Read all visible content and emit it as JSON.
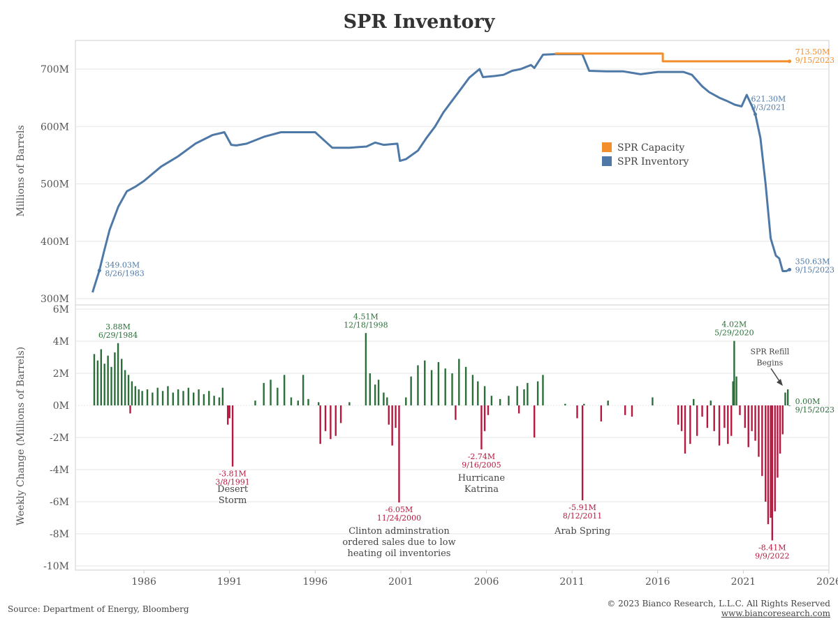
{
  "title": "SPR Inventory",
  "colors": {
    "inventory": "#4e79a7",
    "capacity": "#f28e2b",
    "positive": "#2c6e3a",
    "negative": "#b5193f",
    "grid": "#e6e6e6",
    "axis": "#cccccc"
  },
  "footer": {
    "source": "Source: Department of Energy, Bloomberg",
    "copyright": "© 2023 Bianco Research, L.L.C. All Rights Reserved",
    "url": "www.biancoresearch.com"
  },
  "chart_data": [
    {
      "type": "line",
      "ylabel": "Millions of Barrels",
      "ylim": [
        290,
        750
      ],
      "yticks": [
        300,
        400,
        500,
        600,
        700
      ],
      "ytick_labels": [
        "300M",
        "400M",
        "500M",
        "600M",
        "700M"
      ],
      "xlim": [
        1982.0,
        2026.0
      ],
      "xticks": [
        1986,
        1991,
        1996,
        2001,
        2006,
        2011,
        2016,
        2021,
        2026
      ],
      "grid": true,
      "legend": {
        "position": "right",
        "entries": [
          {
            "label": "SPR Capacity",
            "color": "#f28e2b"
          },
          {
            "label": "SPR Inventory",
            "color": "#4e79a7"
          }
        ]
      },
      "series": [
        {
          "name": "SPR Inventory",
          "x": [
            1983.0,
            1983.4,
            1983.65,
            1984.0,
            1984.5,
            1985.0,
            1985.5,
            1986.0,
            1987.0,
            1988.0,
            1989.0,
            1990.0,
            1990.7,
            1991.1,
            1991.4,
            1992.0,
            1993.0,
            1994.0,
            1995.0,
            1996.0,
            1997.0,
            1997.5,
            1998.0,
            1999.0,
            1999.5,
            2000.0,
            2000.8,
            2000.95,
            2001.3,
            2002.0,
            2002.5,
            2003.0,
            2003.5,
            2004.0,
            2004.5,
            2005.0,
            2005.6,
            2005.8,
            2006.5,
            2007.0,
            2007.5,
            2008.0,
            2008.6,
            2008.8,
            2009.3,
            2010.0,
            2011.0,
            2011.6,
            2012.0,
            2013.0,
            2014.0,
            2015.0,
            2016.0,
            2017.0,
            2017.5,
            2018.0,
            2018.6,
            2019.0,
            2019.6,
            2020.0,
            2020.5,
            2020.9,
            2021.2,
            2021.5,
            2021.7,
            2022.0,
            2022.3,
            2022.6,
            2022.9,
            2023.1,
            2023.3,
            2023.5,
            2023.7
          ],
          "values": [
            311,
            349.03,
            380,
            420,
            460,
            487,
            495,
            505,
            530,
            548,
            570,
            585,
            590,
            568,
            567,
            570,
            582,
            590,
            590,
            590,
            563,
            563,
            563,
            565,
            572,
            568,
            570,
            540,
            543,
            558,
            580,
            600,
            625,
            645,
            665,
            685,
            700,
            686,
            688,
            690,
            697,
            700,
            707,
            702,
            725,
            726,
            726,
            726,
            697,
            696,
            696,
            691,
            695,
            695,
            695,
            690,
            670,
            660,
            650,
            645,
            638,
            635,
            655,
            636,
            621.3,
            580,
            500,
            405,
            375,
            370,
            348,
            348,
            350.63
          ]
        },
        {
          "name": "SPR Capacity",
          "x": [
            2010.0,
            2016.3,
            2016.3,
            2023.7
          ],
          "values": [
            727,
            727,
            713.5,
            713.5
          ]
        }
      ],
      "annotations": [
        {
          "value": "349.03M",
          "date": "8/26/1983",
          "x": 1983.4,
          "y": 349.03,
          "color": "#4e79a7"
        },
        {
          "value": "621.30M",
          "date": "9/3/2021",
          "x": 2021.7,
          "y": 621.3,
          "color": "#4e79a7"
        },
        {
          "value": "713.50M",
          "date": "9/15/2023",
          "x": 2023.7,
          "y": 713.5,
          "color": "#f28e2b"
        },
        {
          "value": "350.63M",
          "date": "9/15/2023",
          "x": 2023.7,
          "y": 350.63,
          "color": "#4e79a7"
        }
      ]
    },
    {
      "type": "bar",
      "ylabel": "Weekly Change (Millions of Barrels)",
      "ylim": [
        -10,
        6
      ],
      "yticks": [
        -10,
        -8,
        -6,
        -4,
        -2,
        0,
        2,
        4,
        6
      ],
      "ytick_labels": [
        "-10M",
        "-8M",
        "-6M",
        "-4M",
        "-2M",
        "0M",
        "2M",
        "4M",
        "6M"
      ],
      "xlim": [
        1982.0,
        2026.0
      ],
      "xticks": [
        1986,
        1991,
        1996,
        2001,
        2006,
        2011,
        2016,
        2021,
        2026
      ],
      "xtick_labels": [
        "1986",
        "1991",
        "1996",
        "2001",
        "2006",
        "2011",
        "2016",
        "2021",
        "2026"
      ],
      "grid": true,
      "bars": [
        {
          "x": 1983.1,
          "v": 3.2
        },
        {
          "x": 1983.3,
          "v": 2.8
        },
        {
          "x": 1983.5,
          "v": 3.5
        },
        {
          "x": 1983.7,
          "v": 2.6
        },
        {
          "x": 1983.9,
          "v": 3.1
        },
        {
          "x": 1984.1,
          "v": 2.4
        },
        {
          "x": 1984.3,
          "v": 3.3
        },
        {
          "x": 1984.49,
          "v": 3.88
        },
        {
          "x": 1984.7,
          "v": 2.9
        },
        {
          "x": 1984.9,
          "v": 2.2
        },
        {
          "x": 1985.1,
          "v": 1.9
        },
        {
          "x": 1985.3,
          "v": 1.5
        },
        {
          "x": 1985.5,
          "v": 1.2
        },
        {
          "x": 1985.7,
          "v": 1.0
        },
        {
          "x": 1985.9,
          "v": 0.9
        },
        {
          "x": 1986.2,
          "v": 1.0
        },
        {
          "x": 1986.5,
          "v": 0.8
        },
        {
          "x": 1986.8,
          "v": 1.1
        },
        {
          "x": 1987.1,
          "v": 0.9
        },
        {
          "x": 1987.4,
          "v": 1.2
        },
        {
          "x": 1987.7,
          "v": 0.8
        },
        {
          "x": 1988.0,
          "v": 1.0
        },
        {
          "x": 1988.3,
          "v": 0.9
        },
        {
          "x": 1988.6,
          "v": 1.1
        },
        {
          "x": 1988.9,
          "v": 0.8
        },
        {
          "x": 1989.2,
          "v": 1.0
        },
        {
          "x": 1989.5,
          "v": 0.7
        },
        {
          "x": 1989.8,
          "v": 0.9
        },
        {
          "x": 1990.1,
          "v": 0.6
        },
        {
          "x": 1990.4,
          "v": 0.5
        },
        {
          "x": 1990.6,
          "v": 1.1
        },
        {
          "x": 1990.9,
          "v": -1.2
        },
        {
          "x": 1991.0,
          "v": -0.8
        },
        {
          "x": 1991.18,
          "v": -3.81
        },
        {
          "x": 1985.2,
          "v": -0.5
        },
        {
          "x": 1992.5,
          "v": 0.3
        },
        {
          "x": 1993.0,
          "v": 1.4
        },
        {
          "x": 1993.4,
          "v": 1.6
        },
        {
          "x": 1993.8,
          "v": 1.1
        },
        {
          "x": 1994.2,
          "v": 1.9
        },
        {
          "x": 1994.6,
          "v": 0.5
        },
        {
          "x": 1995.0,
          "v": 0.3
        },
        {
          "x": 1995.3,
          "v": 1.9
        },
        {
          "x": 1995.6,
          "v": 0.4
        },
        {
          "x": 1996.2,
          "v": 0.2
        },
        {
          "x": 1996.3,
          "v": -2.4
        },
        {
          "x": 1996.6,
          "v": -1.6
        },
        {
          "x": 1996.9,
          "v": -2.1
        },
        {
          "x": 1997.2,
          "v": -1.9
        },
        {
          "x": 1997.5,
          "v": -1.1
        },
        {
          "x": 1998.0,
          "v": 0.2
        },
        {
          "x": 1998.96,
          "v": 4.51
        },
        {
          "x": 1999.2,
          "v": 2.0
        },
        {
          "x": 1999.5,
          "v": 1.3
        },
        {
          "x": 1999.7,
          "v": 1.6
        },
        {
          "x": 2000.0,
          "v": 0.8
        },
        {
          "x": 2000.2,
          "v": 0.5
        },
        {
          "x": 2000.3,
          "v": -1.2
        },
        {
          "x": 2000.5,
          "v": -2.5
        },
        {
          "x": 2000.7,
          "v": -1.4
        },
        {
          "x": 2000.9,
          "v": -6.05
        },
        {
          "x": 2001.3,
          "v": 0.5
        },
        {
          "x": 2001.6,
          "v": 1.8
        },
        {
          "x": 2002.0,
          "v": 2.5
        },
        {
          "x": 2002.4,
          "v": 2.8
        },
        {
          "x": 2002.8,
          "v": 2.2
        },
        {
          "x": 2003.2,
          "v": 2.7
        },
        {
          "x": 2003.6,
          "v": 2.3
        },
        {
          "x": 2004.0,
          "v": 2.0
        },
        {
          "x": 2004.4,
          "v": 2.9
        },
        {
          "x": 2004.8,
          "v": 2.4
        },
        {
          "x": 2005.2,
          "v": 1.9
        },
        {
          "x": 2005.5,
          "v": 1.5
        },
        {
          "x": 2005.9,
          "v": 1.2
        },
        {
          "x": 2006.3,
          "v": 0.6
        },
        {
          "x": 2004.2,
          "v": -0.9
        },
        {
          "x": 2005.71,
          "v": -2.74
        },
        {
          "x": 2005.9,
          "v": -1.6
        },
        {
          "x": 2006.1,
          "v": -0.6
        },
        {
          "x": 2006.8,
          "v": 0.4
        },
        {
          "x": 2007.3,
          "v": 0.6
        },
        {
          "x": 2007.8,
          "v": 1.2
        },
        {
          "x": 2008.2,
          "v": 1.0
        },
        {
          "x": 2008.4,
          "v": 1.4
        },
        {
          "x": 2009.0,
          "v": 1.5
        },
        {
          "x": 2009.3,
          "v": 1.9
        },
        {
          "x": 2007.9,
          "v": -0.5
        },
        {
          "x": 2008.8,
          "v": -2.0
        },
        {
          "x": 2010.6,
          "v": 0.1
        },
        {
          "x": 2011.7,
          "v": 0.1
        },
        {
          "x": 2011.3,
          "v": -0.8
        },
        {
          "x": 2011.61,
          "v": -5.91
        },
        {
          "x": 2012.7,
          "v": -1.0
        },
        {
          "x": 2014.1,
          "v": -0.6
        },
        {
          "x": 2014.5,
          "v": -0.7
        },
        {
          "x": 2013.1,
          "v": 0.3
        },
        {
          "x": 2015.7,
          "v": 0.5
        },
        {
          "x": 2017.2,
          "v": -1.2
        },
        {
          "x": 2017.4,
          "v": -1.6
        },
        {
          "x": 2017.6,
          "v": -3.0
        },
        {
          "x": 2017.9,
          "v": -2.4
        },
        {
          "x": 2018.3,
          "v": -1.9
        },
        {
          "x": 2018.6,
          "v": -0.7
        },
        {
          "x": 2018.9,
          "v": -1.4
        },
        {
          "x": 2019.3,
          "v": -1.6
        },
        {
          "x": 2019.6,
          "v": -2.5
        },
        {
          "x": 2019.9,
          "v": -1.4
        },
        {
          "x": 2020.1,
          "v": -2.4
        },
        {
          "x": 2020.3,
          "v": -1.9
        },
        {
          "x": 2018.1,
          "v": 0.4
        },
        {
          "x": 2019.1,
          "v": 0.3
        },
        {
          "x": 2020.4,
          "v": 1.5
        },
        {
          "x": 2020.47,
          "v": 4.02
        },
        {
          "x": 2020.6,
          "v": 1.8
        },
        {
          "x": 2020.8,
          "v": -0.6
        },
        {
          "x": 2021.1,
          "v": -1.4
        },
        {
          "x": 2021.3,
          "v": -2.6
        },
        {
          "x": 2021.5,
          "v": -1.6
        },
        {
          "x": 2021.7,
          "v": -2.2
        },
        {
          "x": 2021.9,
          "v": -3.2
        },
        {
          "x": 2022.1,
          "v": -4.4
        },
        {
          "x": 2022.3,
          "v": -6.0
        },
        {
          "x": 2022.45,
          "v": -7.4
        },
        {
          "x": 2022.6,
          "v": -7.0
        },
        {
          "x": 2022.69,
          "v": -8.41
        },
        {
          "x": 2022.85,
          "v": -6.6
        },
        {
          "x": 2023.0,
          "v": -4.5
        },
        {
          "x": 2023.15,
          "v": -3.0
        },
        {
          "x": 2023.3,
          "v": -1.8
        },
        {
          "x": 2023.45,
          "v": 0.8
        },
        {
          "x": 2023.6,
          "v": 1.0
        },
        {
          "x": 2023.7,
          "v": 0.0
        }
      ],
      "annotations": [
        {
          "value": "3.88M",
          "date": "6/29/1984",
          "x": 1984.49,
          "y": 3.88,
          "color": "#2c6e3a"
        },
        {
          "value": "4.51M",
          "date": "12/18/1998",
          "x": 1998.96,
          "y": 4.51,
          "color": "#2c6e3a"
        },
        {
          "value": "4.02M",
          "date": "5/29/2020",
          "x": 2020.47,
          "y": 4.02,
          "color": "#2c6e3a"
        },
        {
          "value": "0.00M",
          "date": "9/15/2023",
          "x": 2023.7,
          "y": 0.0,
          "color": "#2c6e3a"
        },
        {
          "value": "-3.81M",
          "date": "3/8/1991",
          "x": 1991.18,
          "y": -3.81,
          "color": "#b5193f"
        },
        {
          "value": "-6.05M",
          "date": "11/24/2000",
          "x": 2000.9,
          "y": -6.05,
          "color": "#b5193f"
        },
        {
          "value": "-2.74M",
          "date": "9/16/2005",
          "x": 2005.71,
          "y": -2.74,
          "color": "#b5193f"
        },
        {
          "value": "-5.91M",
          "date": "8/12/2011",
          "x": 2011.61,
          "y": -5.91,
          "color": "#b5193f"
        },
        {
          "value": "-8.41M",
          "date": "9/9/2022",
          "x": 2022.69,
          "y": -8.41,
          "color": "#b5193f"
        }
      ],
      "notes": [
        {
          "lines": [
            "Desert",
            "Storm"
          ],
          "x": 1991.18,
          "y": -5.4
        },
        {
          "lines": [
            "Clinton adminstration",
            "ordered sales due to low",
            "heating oil inventories"
          ],
          "x": 2000.9,
          "y": -8.0
        },
        {
          "lines": [
            "Hurricane",
            "Katrina"
          ],
          "x": 2005.71,
          "y": -4.7
        },
        {
          "lines": [
            "Arab Spring"
          ],
          "x": 2011.61,
          "y": -8.0
        },
        {
          "lines": [
            "SPR Refill",
            "Begins"
          ],
          "x": 2022.55,
          "y": 3.2
        }
      ]
    }
  ]
}
